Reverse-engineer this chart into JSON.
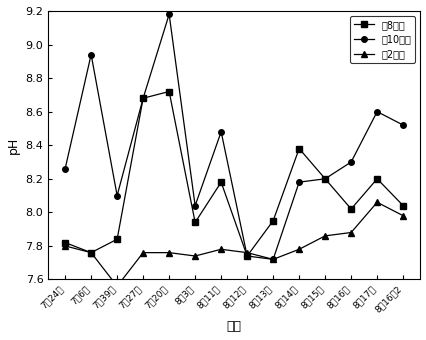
{
  "x_labels": [
    "7月24日",
    "7月6日",
    "7月39日",
    "7月27日",
    "7月20日",
    "8月3日",
    "8月11日",
    "8月12日",
    "8月13日",
    "8月14日",
    "8月15日",
    "8月16日",
    "8月17日",
    "8月16日2"
  ],
  "north8": [
    7.82,
    7.76,
    7.84,
    8.68,
    8.72,
    7.94,
    8.18,
    7.74,
    7.95,
    8.38,
    8.2,
    8.02,
    8.2,
    8.04
  ],
  "north10": [
    8.26,
    8.94,
    8.1,
    8.68,
    9.18,
    8.04,
    8.48,
    7.74,
    7.72,
    8.18,
    8.2,
    8.3,
    8.6,
    8.52
  ],
  "south2": [
    7.8,
    7.76,
    7.56,
    7.76,
    7.76,
    7.74,
    7.78,
    7.76,
    7.72,
    7.78,
    7.86,
    7.88,
    8.06,
    7.98
  ],
  "legend_labels": [
    "列8号塘",
    "列10号塘",
    "南2号塘"
  ],
  "xlabel": "日期",
  "ylabel": "pH",
  "ylim": [
    7.6,
    9.2
  ],
  "yticks": [
    7.6,
    7.8,
    8.0,
    8.2,
    8.4,
    8.6,
    8.8,
    9.0,
    9.2
  ],
  "line_color": "#000000",
  "background_color": "#ffffff"
}
